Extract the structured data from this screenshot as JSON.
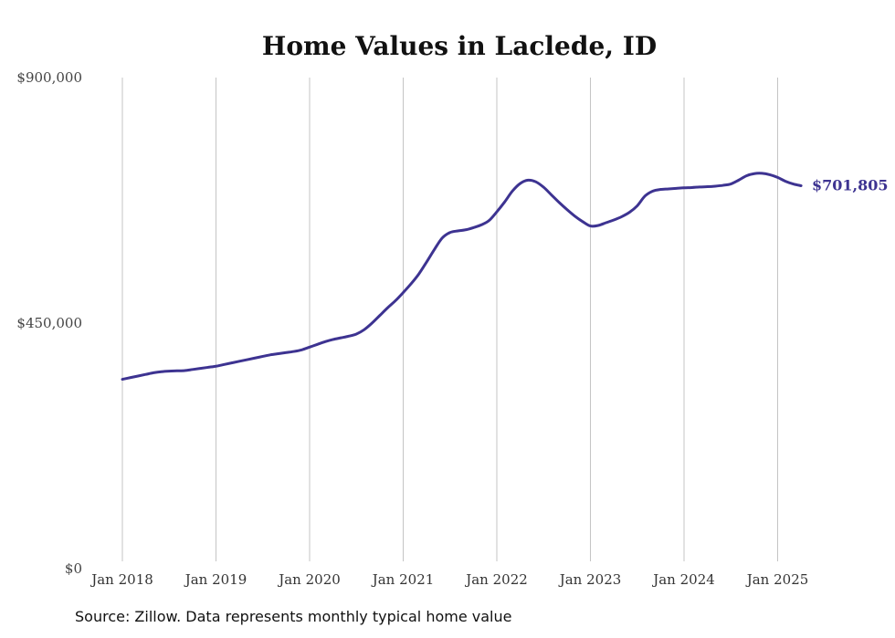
{
  "chart_data": {
    "type": "line",
    "title": "Home Values in Laclede, ID",
    "xlabel": "",
    "ylabel": "",
    "x_tick_labels": [
      "Jan 2018",
      "Jan 2019",
      "Jan 2020",
      "Jan 2021",
      "Jan 2022",
      "Jan 2023",
      "Jan 2024",
      "Jan 2025"
    ],
    "y_tick_labels": [
      "$0",
      "$450,000",
      "$900,000"
    ],
    "y_ticks": [
      0,
      450000,
      900000
    ],
    "ylim": [
      0,
      900000
    ],
    "xlim": [
      "2018-01",
      "2025-04"
    ],
    "grid": "vertical",
    "line_color": "#3d3391",
    "end_label": "$701,805",
    "series": [
      {
        "x": [
          "2018-01",
          "2018-02",
          "2018-03",
          "2018-04",
          "2018-05",
          "2018-06",
          "2018-07",
          "2018-08",
          "2018-09",
          "2018-10",
          "2018-11",
          "2018-12",
          "2019-01",
          "2019-02",
          "2019-03",
          "2019-04",
          "2019-05",
          "2019-06",
          "2019-07",
          "2019-08",
          "2019-09",
          "2019-10",
          "2019-11",
          "2019-12",
          "2020-01",
          "2020-02",
          "2020-03",
          "2020-04",
          "2020-05",
          "2020-06",
          "2020-07",
          "2020-08",
          "2020-09",
          "2020-10",
          "2020-11",
          "2020-12",
          "2021-01",
          "2021-02",
          "2021-03",
          "2021-04",
          "2021-05",
          "2021-06",
          "2021-07",
          "2021-08",
          "2021-09",
          "2021-10",
          "2021-11",
          "2021-12",
          "2022-01",
          "2022-02",
          "2022-03",
          "2022-04",
          "2022-05",
          "2022-06",
          "2022-07",
          "2022-08",
          "2022-09",
          "2022-10",
          "2022-11",
          "2022-12",
          "2023-01",
          "2023-02",
          "2023-03",
          "2023-04",
          "2023-05",
          "2023-06",
          "2023-07",
          "2023-08",
          "2023-09",
          "2023-10",
          "2023-11",
          "2023-12",
          "2024-01",
          "2024-02",
          "2024-03",
          "2024-04",
          "2024-05",
          "2024-06",
          "2024-07",
          "2024-08",
          "2024-09",
          "2024-10",
          "2024-11",
          "2024-12",
          "2025-01",
          "2025-02",
          "2025-03",
          "2025-04"
        ],
        "values": [
          347000,
          350000,
          353000,
          356000,
          359000,
          361000,
          362000,
          362500,
          363000,
          365000,
          367000,
          369000,
          371000,
          374000,
          377000,
          380000,
          383000,
          386000,
          389000,
          392000,
          394000,
          396000,
          398000,
          401000,
          406000,
          411000,
          416000,
          420000,
          423000,
          426000,
          430000,
          438000,
          450000,
          464000,
          478000,
          491000,
          506000,
          522000,
          540000,
          562000,
          585000,
          606000,
          616000,
          619000,
          621000,
          625000,
          630000,
          638000,
          654000,
          672000,
          692000,
          706000,
          712000,
          709000,
          699000,
          685000,
          671000,
          658000,
          646000,
          636000,
          628000,
          629000,
          634000,
          639000,
          645000,
          653000,
          665000,
          683000,
          692000,
          695000,
          696000,
          697000,
          698000,
          698500,
          699500,
          700000,
          701000,
          702500,
          705000,
          712000,
          720000,
          724000,
          724500,
          722000,
          717000,
          710000,
          705000,
          701805
        ]
      }
    ]
  },
  "footer": {
    "source": "Source: Zillow. Data represents monthly typical home value"
  }
}
